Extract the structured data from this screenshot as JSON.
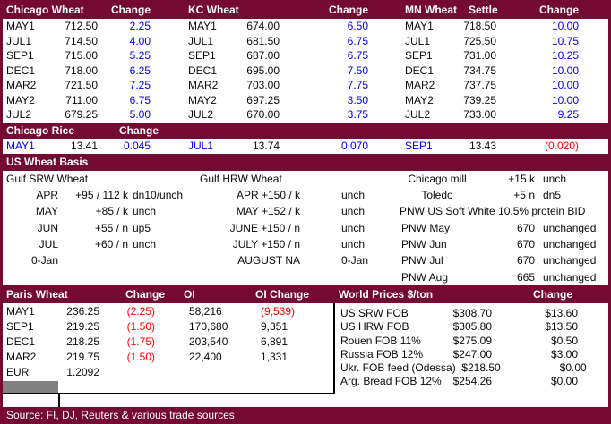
{
  "colors": {
    "header_maroon": "#740a32",
    "gain_blue": "#0000ee",
    "loss_red": "#fe0000",
    "gray_cell": "#808080"
  },
  "futures": {
    "panels": [
      {
        "title": "Chicago Wheat",
        "change_label": "Change",
        "rows": [
          {
            "m": "MAY1",
            "s": "712.50",
            "c": "2.25"
          },
          {
            "m": "JUL1",
            "s": "714.50",
            "c": "4.00"
          },
          {
            "m": "SEP1",
            "s": "715.00",
            "c": "5.25"
          },
          {
            "m": "DEC1",
            "s": "718.00",
            "c": "6.25"
          },
          {
            "m": "MAR2",
            "s": "721.50",
            "c": "7.25"
          },
          {
            "m": "MAY2",
            "s": "711.00",
            "c": "6.75"
          },
          {
            "m": "JUL2",
            "s": "679.25",
            "c": "5.00"
          }
        ]
      },
      {
        "title": "KC Wheat",
        "change_label": "Change",
        "rows": [
          {
            "m": "MAY1",
            "s": "674.00",
            "c": "6.50"
          },
          {
            "m": "JUL1",
            "s": "681.50",
            "c": "6.75"
          },
          {
            "m": "SEP1",
            "s": "687.00",
            "c": "6.75"
          },
          {
            "m": "DEC1",
            "s": "695.00",
            "c": "7.50"
          },
          {
            "m": "MAR2",
            "s": "703.00",
            "c": "7.75"
          },
          {
            "m": "MAY2",
            "s": "697.25",
            "c": "3.50"
          },
          {
            "m": "JUL2",
            "s": "670.00",
            "c": "3.75"
          }
        ]
      },
      {
        "title": "MN Wheat",
        "settle_label": "Settle",
        "change_label": "Change",
        "rows": [
          {
            "m": "MAY1",
            "s": "718.50",
            "c": "10.00"
          },
          {
            "m": "JUL1",
            "s": "725.50",
            "c": "10.75"
          },
          {
            "m": "SEP1",
            "s": "731.00",
            "c": "10.25"
          },
          {
            "m": "DEC1",
            "s": "734.75",
            "c": "10.00"
          },
          {
            "m": "MAR2",
            "s": "737.75",
            "c": "10.00"
          },
          {
            "m": "MAY2",
            "s": "739.25",
            "c": "10.00"
          },
          {
            "m": "JUL2",
            "s": "733.00",
            "c": "9.25"
          }
        ]
      }
    ]
  },
  "rice": {
    "title": "Chicago Rice",
    "change_label": "Change",
    "cells": [
      {
        "m": "MAY1",
        "v": "13.41",
        "c": "0.045",
        "cc": "blue"
      },
      {
        "m": "JUL1",
        "v": "13.74",
        "c": "0.070",
        "cc": "blue"
      },
      {
        "m": "SEP1",
        "v": "13.43",
        "c": "(0.020)",
        "cc": "red"
      }
    ]
  },
  "basis": {
    "title": "US Wheat Basis",
    "rows": [
      {
        "m": "Gulf SRW Wheat",
        "b": "",
        "c": "",
        "h": "Gulf HRW Wheat",
        "hc": "",
        "lbl": "Chicago mill",
        "vn": "+15 k",
        "vt": "unch"
      },
      {
        "m": "APR",
        "b": "+95 / 112 k",
        "c": "dn10/unch",
        "h": "APR +150 / k",
        "hc": "unch",
        "lbl": "Toledo",
        "vn": "+5 n",
        "vt": "dn5"
      },
      {
        "m": "MAY",
        "b": "+85 / k",
        "c": "unch",
        "h": "MAY +152 / k",
        "hc": "unch",
        "lbl": "PNW US Soft White 10.5% protein BID",
        "vn": "",
        "vt": ""
      },
      {
        "m": "JUN",
        "b": "+55 / n",
        "c": "up5",
        "h": "JUNE +150 / n",
        "hc": "unch",
        "lbl": "PNW May",
        "vn": "670",
        "vt": "unchanged"
      },
      {
        "m": "JUL",
        "b": "+60 / n",
        "c": "unch",
        "h": "JULY +150 / n",
        "hc": "unch",
        "lbl": "PNW Jun",
        "vn": "670",
        "vt": "unchanged"
      },
      {
        "m": "0-Jan",
        "b": "",
        "c": "",
        "h": "AUGUST NA",
        "hc": "0-Jan",
        "lbl": "PNW Jul",
        "vn": "670",
        "vt": "unchanged"
      },
      {
        "m": "",
        "b": "",
        "c": "",
        "h": "",
        "hc": "",
        "lbl": "PNW Aug",
        "vn": "665",
        "vt": "unchanged"
      }
    ]
  },
  "paris": {
    "title": "Paris Wheat",
    "change_label": "Change",
    "oi_label": "OI",
    "oi_change_label": "OI Change",
    "rows": [
      {
        "m": "MAY1",
        "v": "236.25",
        "c": "(2.25)",
        "oi": "58,216",
        "oc": "(9,539)",
        "occ": "red"
      },
      {
        "m": "SEP1",
        "v": "219.25",
        "c": "(1.50)",
        "oi": "170,680",
        "oc": "9,351",
        "occ": ""
      },
      {
        "m": "DEC1",
        "v": "218.25",
        "c": "(1.75)",
        "oi": "203,540",
        "oc": "6,891",
        "occ": ""
      },
      {
        "m": "MAR2",
        "v": "219.75",
        "c": "(1.50)",
        "oi": "22,400",
        "oc": "1,331",
        "occ": ""
      },
      {
        "m": "EUR",
        "v": "1.2092",
        "c": "",
        "oi": "",
        "oc": "",
        "occ": ""
      }
    ]
  },
  "world": {
    "title": "World Prices $/ton",
    "change_label": "Change",
    "rows": [
      {
        "label": "US SRW FOB",
        "price": "$308.70",
        "change": "$13.60"
      },
      {
        "label": "US HRW FOB",
        "price": "$305.80",
        "change": "$13.50"
      },
      {
        "label": "Rouen FOB 11%",
        "price": "$275.09",
        "change": "$0.50"
      },
      {
        "label": "Russia FOB 12%",
        "price": "$247.00",
        "change": "$3.00"
      },
      {
        "label": "Ukr. FOB feed (Odessa)",
        "price": "$218.50",
        "change": "$0.00"
      },
      {
        "label": "Arg. Bread FOB 12%",
        "price": "$254.26",
        "change": "$0.00"
      }
    ]
  },
  "source": "Source: FI, DJ, Reuters & various trade sources"
}
